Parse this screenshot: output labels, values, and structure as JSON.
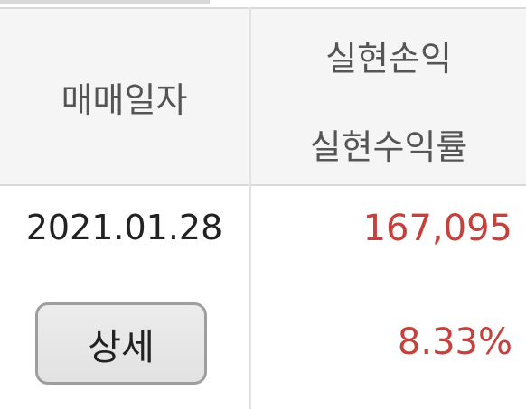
{
  "table": {
    "header": {
      "date_label": "매매일자",
      "realized_pl_label": "실현손익",
      "realized_rate_label": "실현수익률"
    },
    "rows": [
      {
        "date": "2021.01.28",
        "detail_button_label": "상세",
        "realized_pl": "167,095",
        "realized_rate": "8.33%"
      }
    ]
  },
  "colors": {
    "positive_value": "#c5413c",
    "header_background": "#f5f5f5",
    "divider": "#d9d9d9"
  }
}
